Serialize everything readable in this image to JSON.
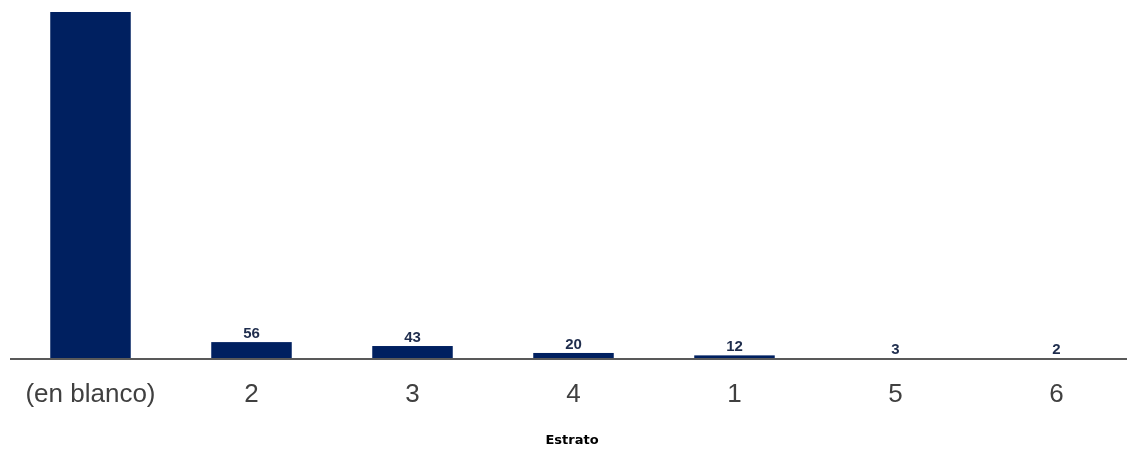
{
  "chart_data": {
    "type": "bar",
    "xlabel": "Estrato",
    "categories": [
      "(en blanco)",
      "2",
      "3",
      "4",
      "1",
      "5",
      "6"
    ],
    "values": [
      1150,
      56,
      43,
      20,
      12,
      3,
      2
    ],
    "value_labels": [
      null,
      "56",
      "43",
      "20",
      "12",
      "3",
      "2"
    ],
    "color": "#002060"
  }
}
